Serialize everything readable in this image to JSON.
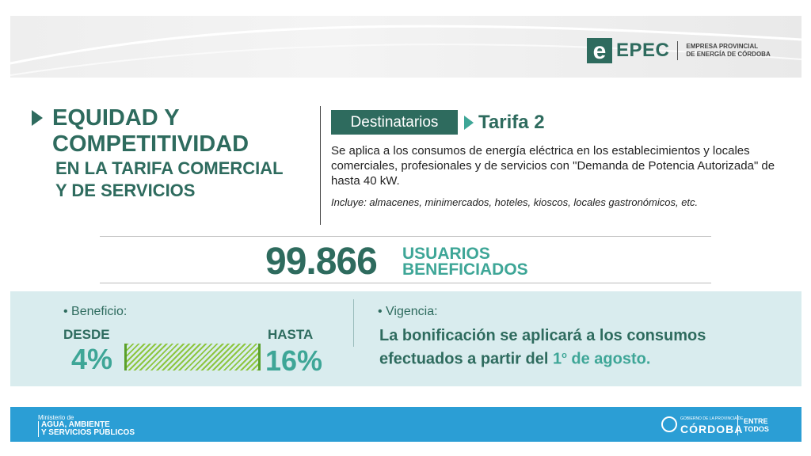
{
  "header": {
    "logo_letter": "e",
    "logo_name": "EPEC",
    "logo_full_line1": "EMPRESA PROVINCIAL",
    "logo_full_line2": "DE ENERGÍA DE CÓRDOBA"
  },
  "title": {
    "line1": "EQUIDAD Y",
    "line2": "COMPETITIVIDAD",
    "line3": "EN LA TARIFA COMERCIAL",
    "line4": "Y DE SERVICIOS"
  },
  "destinatarios": {
    "badge": "Destinatarios",
    "tarifa": "Tarifa 2",
    "description": "Se aplica a los consumos de energía eléctrica en los establecimientos y locales comerciales, profesionales y de servicios con \"Demanda de Potencia Autorizada\" de hasta 40 kW.",
    "includes": "Incluye: almacenes, minimercados, hoteles, kioscos, locales gastronómicos, etc."
  },
  "users": {
    "count": "99.866",
    "label_line1": "USUARIOS",
    "label_line2": "BENEFICIADOS"
  },
  "benefit": {
    "title": "Beneficio:",
    "from_label": "DESDE",
    "from_value": "4%",
    "to_label": "HASTA",
    "to_value": "16%"
  },
  "vigencia": {
    "title": "Vigencia:",
    "text_line1": "La bonificación se aplicará a los consumos",
    "text_line2_pre": "efectuados a partir del ",
    "text_line2_day": "1",
    "text_line2_sup": "o",
    "text_line2_post": " de agosto."
  },
  "footer": {
    "ministry_pre": "Ministerio de",
    "ministry_line1": "AGUA, AMBIENTE",
    "ministry_line2": "Y SERVICIOS PÚBLICOS",
    "gob_pre": "GOBIERNO DE LA PROVINCIA DE",
    "gob_name": "CÓRDOBA",
    "entre_line1": "ENTRE",
    "entre_line2": "TODOS"
  },
  "colors": {
    "primary": "#2e6b5e",
    "accent": "#3ea697",
    "panel": "#d9ecee",
    "footer": "#2b9ed5",
    "bar": "#8ec63f"
  }
}
